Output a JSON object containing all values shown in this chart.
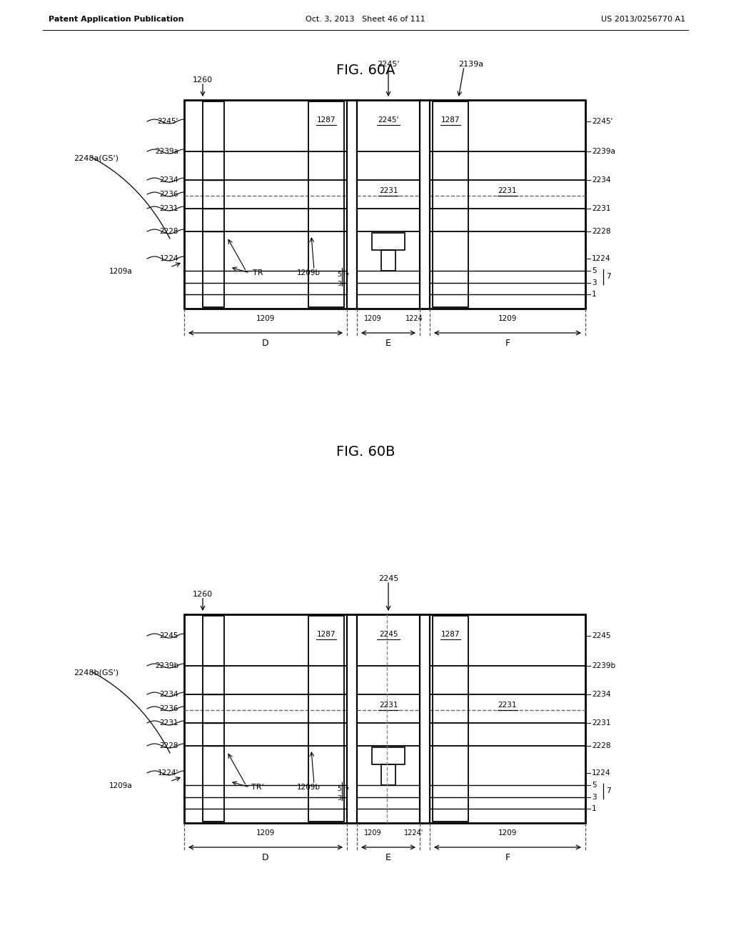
{
  "header_left": "Patent Application Publication",
  "header_center": "Oct. 3, 2013   Sheet 46 of 111",
  "header_right": "US 2013/0256770 A1",
  "fig_title_A": "FIG. 60A",
  "fig_title_B": "FIG. 60B",
  "bg_color": "#ffffff",
  "line_color": "#000000"
}
